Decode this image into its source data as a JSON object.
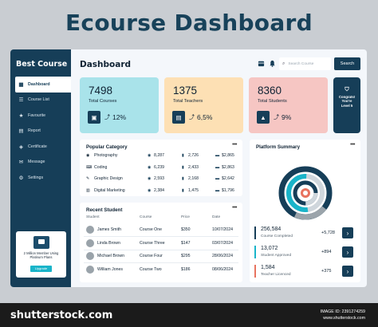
{
  "banner": {
    "title": "Ecourse Dashboard"
  },
  "sidebar": {
    "brand": "Best Course",
    "items": [
      {
        "label": "Dashboard",
        "icon": "grid-icon",
        "glyph": "▦",
        "active": true
      },
      {
        "label": "Course List",
        "icon": "list-icon",
        "glyph": "☰",
        "active": false
      },
      {
        "label": "Favourite",
        "icon": "star-icon",
        "glyph": "★",
        "active": false
      },
      {
        "label": "Report",
        "icon": "document-icon",
        "glyph": "▤",
        "active": false
      },
      {
        "label": "Certificate",
        "icon": "certificate-icon",
        "glyph": "◈",
        "active": false
      },
      {
        "label": "Message",
        "icon": "message-icon",
        "glyph": "✉",
        "active": false
      },
      {
        "label": "Settings",
        "icon": "gear-icon",
        "glyph": "⚙",
        "active": false
      }
    ],
    "promo": {
      "text": "2 Million Member Using Platinum Plans",
      "button": "Upgrade"
    }
  },
  "header": {
    "title": "Dashboard",
    "search_placeholder": "Search Course",
    "search_button": "Search"
  },
  "stats": [
    {
      "value": "7498",
      "label": "Total Courses",
      "pct": "12%",
      "color": "#a9e3ea",
      "icon": "book-icon",
      "glyph": "▣"
    },
    {
      "value": "1375",
      "label": "Total Teachers",
      "pct": "6,5%",
      "color": "#fde0b4",
      "icon": "presentation-icon",
      "glyph": "▤"
    },
    {
      "value": "8360",
      "label": "Total Students",
      "pct": "9%",
      "color": "#f6c6c3",
      "icon": "graduation-cap-icon",
      "glyph": "▲"
    }
  ],
  "congrats": {
    "text1": "Congrats!",
    "text2": "You're",
    "text3": "Level 5"
  },
  "popular": {
    "title": "Popular Category",
    "rows": [
      {
        "name": "Photography",
        "views": "8,287",
        "saves": "2,726",
        "amount": "$2,865",
        "icon": "camera-icon",
        "glyph": "◉"
      },
      {
        "name": "Coding",
        "views": "6,239",
        "saves": "2,433",
        "amount": "$2,863",
        "icon": "code-icon",
        "glyph": "⌨"
      },
      {
        "name": "Graphic Design",
        "views": "2,593",
        "saves": "2,168",
        "amount": "$2,642",
        "icon": "design-icon",
        "glyph": "✎"
      },
      {
        "name": "Digital Marketing",
        "views": "2,384",
        "saves": "1,475",
        "amount": "$1,796",
        "icon": "marketing-icon",
        "glyph": "▥"
      }
    ]
  },
  "summary": {
    "title": "Platform Summary",
    "rows": [
      {
        "value": "256,584",
        "label": "Course Completed",
        "delta": "+5,728",
        "color": "#163e58"
      },
      {
        "value": "13,072",
        "label": "Student Approved",
        "delta": "+894",
        "color": "#19b4c9"
      },
      {
        "value": "1,584",
        "label": "Teacher Licenced",
        "delta": "+375",
        "color": "#e8735f"
      }
    ],
    "ring_colors": [
      "#163e58",
      "#9ba4ab",
      "#19b4c9",
      "#cfd6dc",
      "#e8735f"
    ]
  },
  "students": {
    "title": "Recent Student",
    "headers": {
      "student": "Student",
      "course": "Course",
      "price": "Price",
      "date": "Date"
    },
    "rows": [
      {
        "name": "James Smith",
        "course": "Course One",
        "price": "$350",
        "date": "10/07/2024"
      },
      {
        "name": "Linda Brown",
        "course": "Course Three",
        "price": "$147",
        "date": "03/07/2024"
      },
      {
        "name": "Michael Brown",
        "course": "Course Four",
        "price": "$295",
        "date": "28/06/2024"
      },
      {
        "name": "William Jones",
        "course": "Course Two",
        "price": "$186",
        "date": "08/06/2024"
      }
    ]
  },
  "footer": {
    "logo": "shutterstock.com",
    "id_line": "IMAGE ID: 2391274259",
    "site": "www.shutterstock.com"
  }
}
